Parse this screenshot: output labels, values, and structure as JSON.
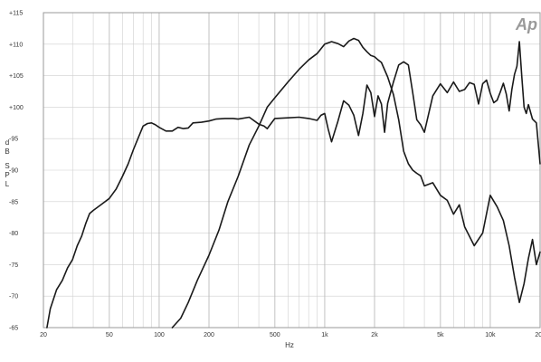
{
  "chart_data": {
    "type": "line",
    "title": "",
    "xlabel": "Hz",
    "ylabel": "dB SPL",
    "x_scale": "log",
    "xlim": [
      20,
      20000
    ],
    "ylim": [
      65,
      115
    ],
    "x_ticks": [
      {
        "value": 20,
        "label": "20"
      },
      {
        "value": 50,
        "label": "50"
      },
      {
        "value": 100,
        "label": "100"
      },
      {
        "value": 200,
        "label": "200"
      },
      {
        "value": 500,
        "label": "500"
      },
      {
        "value": 1000,
        "label": "1k"
      },
      {
        "value": 2000,
        "label": "2k"
      },
      {
        "value": 5000,
        "label": "5k"
      },
      {
        "value": 10000,
        "label": "10k"
      },
      {
        "value": 20000,
        "label": "20k"
      }
    ],
    "y_ticks": [
      {
        "value": 65,
        "label": "-65"
      },
      {
        "value": 70,
        "label": "-70"
      },
      {
        "value": 75,
        "label": "-75"
      },
      {
        "value": 80,
        "label": "-80"
      },
      {
        "value": 85,
        "label": "-85"
      },
      {
        "value": 90,
        "label": "-90"
      },
      {
        "value": 95,
        "label": "-95"
      },
      {
        "value": 100,
        "label": "+100"
      },
      {
        "value": 105,
        "label": "+105"
      },
      {
        "value": 110,
        "label": "+110"
      },
      {
        "value": 115,
        "label": "+115"
      }
    ],
    "grid": true,
    "legend": "none",
    "logo": "Ap",
    "line_color": "#1a1a1a",
    "grid_color": "#cfcfcf",
    "series": [
      {
        "x": [
          21,
          22,
          24,
          26,
          28,
          30,
          32,
          34,
          36,
          38,
          40,
          45,
          50,
          55,
          60,
          65,
          70,
          75,
          80,
          85,
          90,
          95,
          100,
          105,
          110,
          120,
          130,
          140,
          150,
          160,
          180,
          200,
          220,
          250,
          280,
          300,
          350,
          400,
          430,
          450
        ],
        "y": [
          65,
          68,
          71,
          72.5,
          74.5,
          75.8,
          78,
          79.5,
          81.5,
          83.1,
          83.6,
          84.6,
          85.5,
          87,
          89,
          91,
          93.3,
          95.2,
          97,
          97.4,
          97.5,
          97.2,
          96.8,
          96.5,
          96.2,
          96.2,
          96.8,
          96.6,
          96.7,
          97.5,
          97.6,
          97.8,
          98.1,
          98.2,
          98.2,
          98.1,
          98.4,
          97.3,
          97,
          96.6
        ]
      },
      {
        "x": [
          120,
          135,
          150,
          170,
          200,
          230,
          260,
          300,
          350,
          400,
          450,
          500,
          600,
          700,
          800,
          900,
          1000,
          1100,
          1200,
          1300,
          1400,
          1500,
          1600,
          1700,
          1800,
          1900,
          2000,
          2100,
          2200,
          2400,
          2600,
          2800,
          3000,
          3200,
          3400,
          3600,
          3800,
          4000,
          4500,
          5000,
          5500,
          6000,
          6500,
          7000,
          8000,
          9000,
          10000,
          11000,
          12000,
          13000,
          14000,
          15000,
          16000,
          17000,
          18000,
          19000,
          20000
        ],
        "y": [
          65,
          66.5,
          69,
          72.5,
          76.5,
          80.5,
          85,
          89,
          94,
          97,
          100,
          101.5,
          104,
          106,
          107.5,
          108.5,
          110,
          110.4,
          110.1,
          109.6,
          110.5,
          110.9,
          110.6,
          109.5,
          108.8,
          108.2,
          108,
          107.5,
          107.1,
          104.8,
          102,
          98,
          93,
          91,
          90,
          89.5,
          89.1,
          87.5,
          88,
          86,
          85.2,
          83,
          84.5,
          81,
          78,
          80,
          86,
          84.2,
          82,
          78,
          73,
          69,
          72,
          76,
          79,
          75,
          77
        ]
      },
      {
        "x": [
          450,
          500,
          600,
          700,
          800,
          900,
          950,
          1000,
          1050,
          1100,
          1200,
          1300,
          1400,
          1500,
          1600,
          1700,
          1800,
          1900,
          2000,
          2100,
          2200,
          2300,
          2400,
          2600,
          2800,
          3000,
          3200,
          3400,
          3600,
          3800,
          4000,
          4500,
          5000,
          5500,
          6000,
          6500,
          7000,
          7500,
          8000,
          8500,
          9000,
          9500,
          10000,
          10500,
          11000,
          11500,
          12000,
          12500,
          13000,
          13500,
          14000,
          14500,
          15000,
          15500,
          16000,
          16500,
          17000,
          18000,
          19000,
          20000
        ],
        "y": [
          96.6,
          98.2,
          98.3,
          98.4,
          98.2,
          97.9,
          98.7,
          99,
          96.5,
          94.5,
          97.7,
          101,
          100.3,
          98.7,
          95.5,
          99,
          103.5,
          102.3,
          98.5,
          101.8,
          100.5,
          96,
          100.6,
          104,
          106.7,
          107.2,
          106.7,
          102.3,
          98,
          97.2,
          96,
          101.8,
          103.7,
          102.3,
          104,
          102.5,
          102.8,
          103.9,
          103.6,
          100.5,
          103.7,
          104.3,
          102.2,
          100.7,
          101.1,
          102.4,
          103.8,
          102.1,
          99.4,
          102.8,
          105.2,
          106.5,
          110.4,
          105,
          100,
          99,
          100.4,
          98.1,
          97.5,
          91
        ]
      }
    ]
  }
}
